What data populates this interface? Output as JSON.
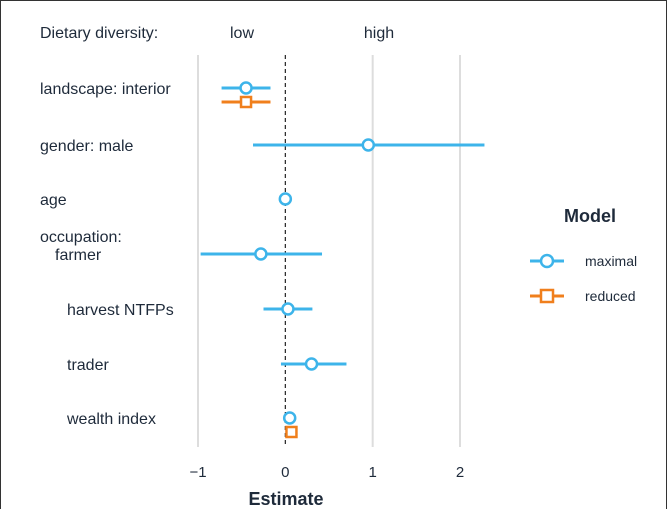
{
  "chart_data": {
    "type": "scatter",
    "subtype": "coefficient-plot",
    "header": {
      "label": "Dietary diversity:",
      "low": "low",
      "high": "high"
    },
    "xlabel": "Estimate",
    "xlim": [
      -1.15,
      2.6
    ],
    "xticks": [
      -1,
      0,
      1,
      2
    ],
    "xtick_labels": [
      "−1",
      "0",
      "1",
      "2"
    ],
    "reference_line": 0,
    "grid": "vertical-major",
    "terms": [
      {
        "label": "landscape: interior"
      },
      {
        "label": "gender: male"
      },
      {
        "label": "age"
      },
      {
        "label_group": "occupation:",
        "label": "farmer"
      },
      {
        "label": "harvest NTFPs"
      },
      {
        "label": "trader"
      },
      {
        "label": "wealth index"
      }
    ],
    "series": [
      {
        "name": "maximal",
        "color": "#3db4ea",
        "marker": "circle",
        "estimate": [
          -0.45,
          0.95,
          0.0,
          -0.28,
          0.03,
          0.3,
          0.05
        ],
        "ci_low": [
          -0.73,
          -0.37,
          0.0,
          -0.97,
          -0.25,
          -0.05,
          0.05
        ],
        "ci_high": [
          -0.17,
          2.28,
          0.0,
          0.42,
          0.31,
          0.7,
          0.05
        ]
      },
      {
        "name": "reduced",
        "color": "#f07f1c",
        "marker": "square",
        "estimate": [
          -0.45,
          null,
          null,
          null,
          null,
          null,
          0.07
        ],
        "ci_low": [
          -0.73,
          null,
          null,
          null,
          null,
          null,
          0.07
        ],
        "ci_high": [
          -0.17,
          null,
          null,
          null,
          null,
          null,
          0.07
        ]
      }
    ],
    "legend": {
      "title": "Model",
      "placement": "right"
    }
  }
}
